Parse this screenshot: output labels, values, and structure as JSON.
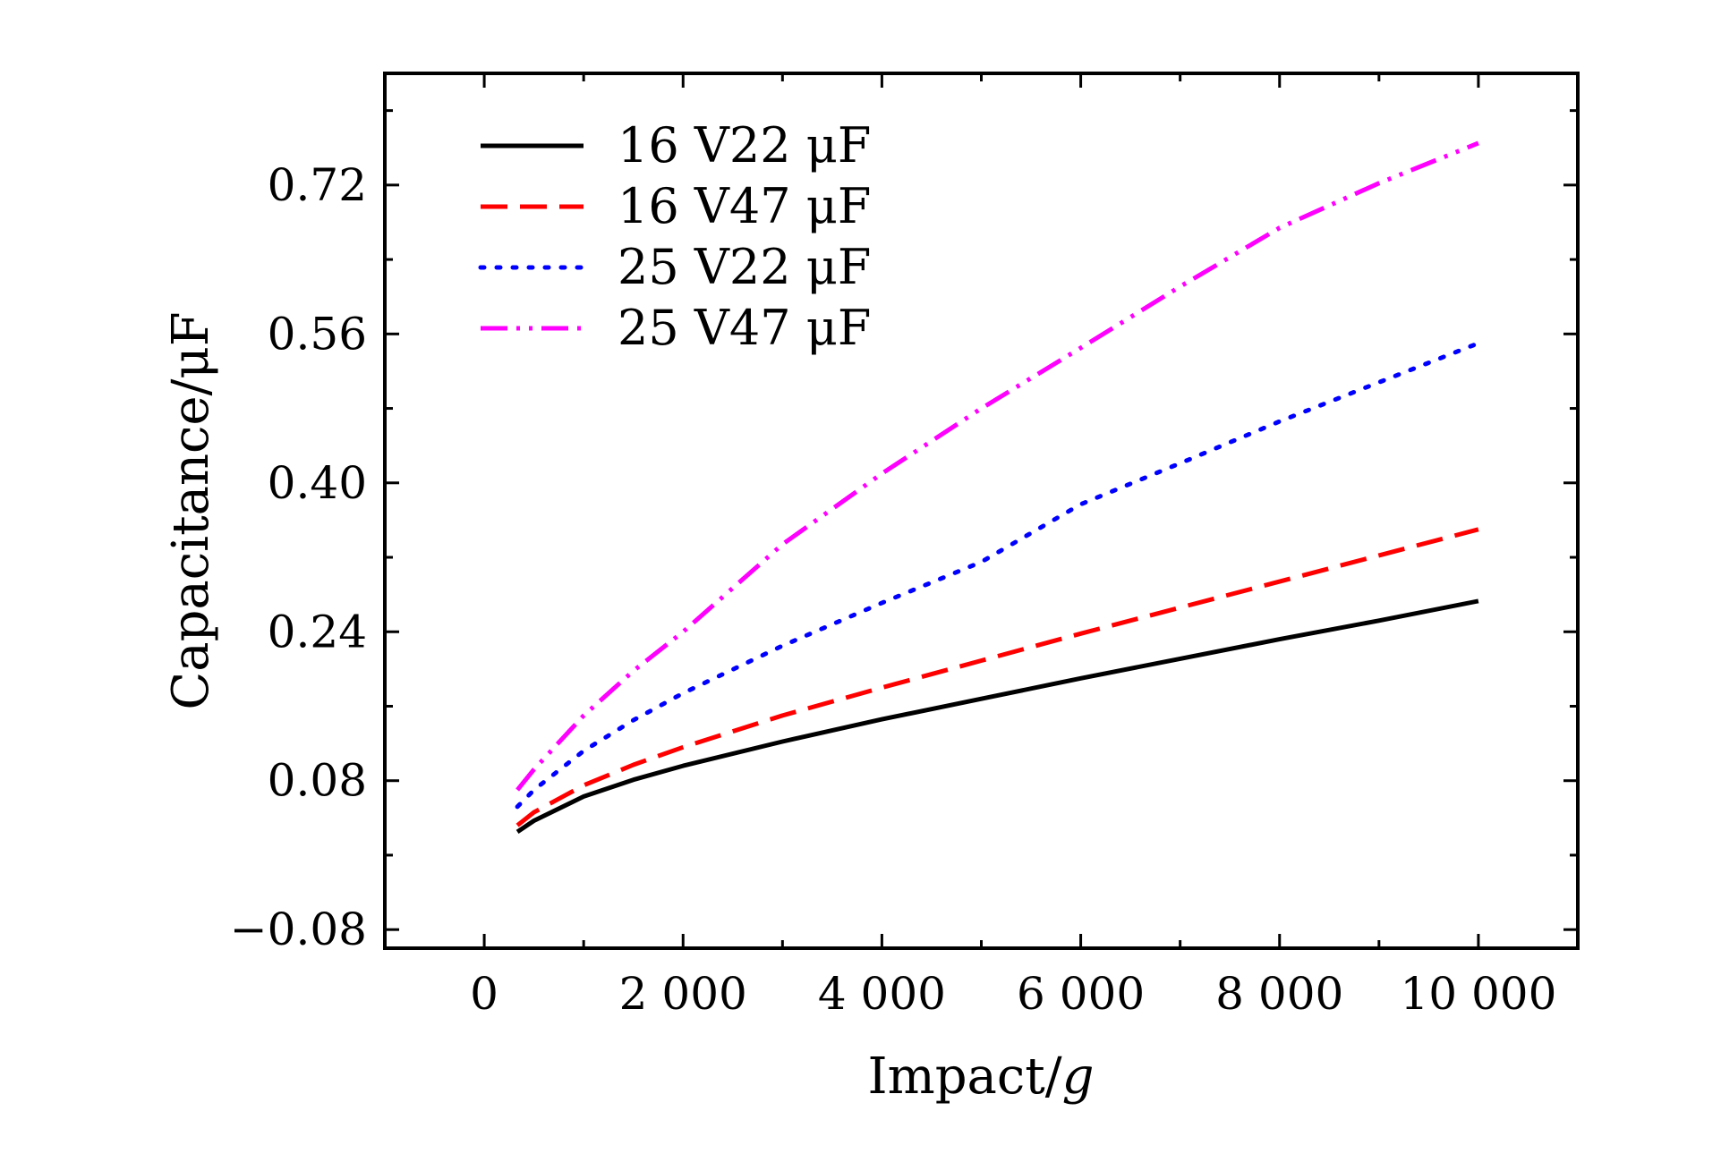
{
  "chart_data": {
    "type": "line",
    "title": "",
    "xlabel": "Impact/",
    "xlabel_italic_unit": "g",
    "ylabel": "Capacitance/μF",
    "xlim": [
      -1000,
      11000
    ],
    "ylim": [
      -0.1,
      0.84
    ],
    "x_ticks": [
      0,
      2000,
      4000,
      6000,
      8000,
      10000
    ],
    "x_tick_labels": [
      "0",
      "2 000",
      "4 000",
      "6 000",
      "8 000",
      "10 000"
    ],
    "y_ticks": [
      -0.08,
      0.08,
      0.24,
      0.4,
      0.56,
      0.72
    ],
    "y_tick_labels": [
      "−0.08",
      "0.08",
      "0.24",
      "0.40",
      "0.56",
      "0.72"
    ],
    "grid": false,
    "legend_position": "top-left",
    "series": [
      {
        "name": "16 V22 μF",
        "color": "#000000",
        "style": "solid",
        "x": [
          333,
          500,
          1000,
          1500,
          2000,
          3000,
          4000,
          5000,
          6000,
          7000,
          8000,
          9000,
          10000
        ],
        "y": [
          0.025,
          0.037,
          0.063,
          0.081,
          0.096,
          0.122,
          0.146,
          0.168,
          0.19,
          0.211,
          0.232,
          0.252,
          0.273
        ]
      },
      {
        "name": "16 V47 μF",
        "color": "#ff0000",
        "style": "dashed",
        "x": [
          333,
          500,
          1000,
          1500,
          2000,
          3000,
          4000,
          5000,
          6000,
          7000,
          8000,
          9000,
          10000
        ],
        "y": [
          0.032,
          0.046,
          0.075,
          0.097,
          0.116,
          0.15,
          0.18,
          0.209,
          0.238,
          0.266,
          0.294,
          0.322,
          0.35
        ]
      },
      {
        "name": "25 V22 μF",
        "color": "#0000ff",
        "style": "dotted",
        "x": [
          333,
          500,
          1000,
          1500,
          2000,
          3000,
          4000,
          5000,
          6000,
          7000,
          8000,
          9000,
          10000
        ],
        "y": [
          0.052,
          0.07,
          0.112,
          0.145,
          0.174,
          0.225,
          0.271,
          0.315,
          0.377,
          0.421,
          0.466,
          0.508,
          0.55
        ]
      },
      {
        "name": "25 V47 μF",
        "color": "#ff00ff",
        "style": "dash-dot-dot",
        "x": [
          333,
          500,
          1000,
          1500,
          2000,
          3000,
          4000,
          5000,
          6000,
          7000,
          8000,
          9000,
          10000
        ],
        "y": [
          0.07,
          0.092,
          0.15,
          0.198,
          0.24,
          0.334,
          0.41,
          0.48,
          0.545,
          0.611,
          0.674,
          0.722,
          0.765
        ]
      }
    ]
  }
}
